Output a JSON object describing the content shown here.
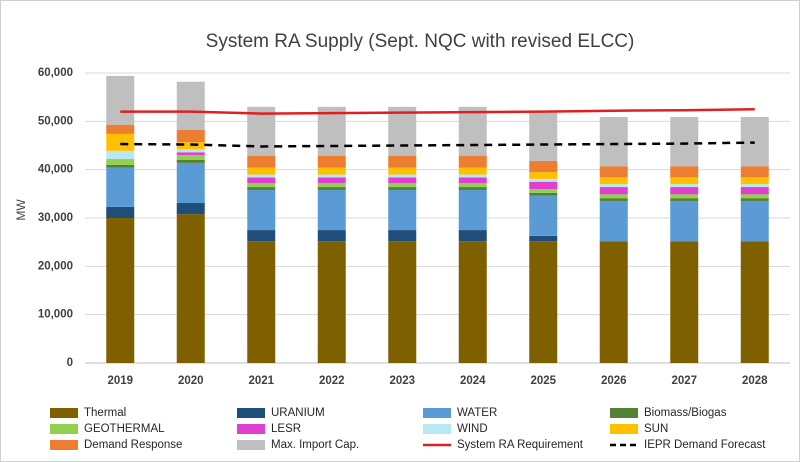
{
  "chart_data": {
    "type": "bar",
    "stacked": true,
    "title": "System RA Supply (Sept. NQC with revised ELCC)",
    "y_label": "MW",
    "categories": [
      "2019",
      "2020",
      "2021",
      "2022",
      "2023",
      "2024",
      "2025",
      "2026",
      "2027",
      "2028"
    ],
    "ylim": [
      0,
      60000
    ],
    "yticks": [
      0,
      {
        "value": 10000,
        "label": "10,000"
      },
      {
        "value": 20000,
        "label": "20,000"
      },
      {
        "value": 30000,
        "label": "30,000"
      },
      {
        "value": 40000,
        "label": "40,000"
      },
      {
        "value": 50000,
        "label": "50,000"
      },
      {
        "value": 60000,
        "label": "60,000"
      }
    ],
    "grid": true,
    "series": [
      {
        "name": "Thermal",
        "color": "#7f6000",
        "values": [
          30000,
          30800,
          25200,
          25200,
          25200,
          25200,
          25200,
          25200,
          25200,
          25200
        ]
      },
      {
        "name": "URANIUM",
        "color": "#1f4e79",
        "values": [
          2300,
          2300,
          2300,
          2300,
          2300,
          2300,
          1100,
          0,
          0,
          0
        ]
      },
      {
        "name": "WATER",
        "color": "#5b9bd5",
        "values": [
          8100,
          8300,
          8300,
          8300,
          8300,
          8300,
          8300,
          8300,
          8300,
          8300
        ]
      },
      {
        "name": "Biomass/Biogas",
        "color": "#548235",
        "values": [
          600,
          600,
          600,
          600,
          600,
          600,
          600,
          600,
          600,
          600
        ]
      },
      {
        "name": "GEOTHERMAL",
        "color": "#92d050",
        "values": [
          1200,
          1000,
          800,
          800,
          800,
          800,
          800,
          800,
          800,
          800
        ]
      },
      {
        "name": "LESR",
        "color": "#e040d0",
        "values": [
          0,
          600,
          1200,
          1200,
          1200,
          1200,
          1500,
          1500,
          1500,
          1500
        ]
      },
      {
        "name": "WIND",
        "color": "#b8e8f2",
        "values": [
          1700,
          600,
          600,
          600,
          600,
          600,
          600,
          600,
          600,
          600
        ]
      },
      {
        "name": "SUN",
        "color": "#ffc000",
        "values": [
          3500,
          1500,
          1400,
          1400,
          1400,
          1400,
          1400,
          1400,
          1400,
          1400
        ]
      },
      {
        "name": "Demand Response",
        "color": "#ed7d31",
        "values": [
          1900,
          2500,
          2500,
          2500,
          2500,
          2500,
          2300,
          2300,
          2300,
          2300
        ]
      },
      {
        "name": "Max. Import Cap.",
        "color": "#bfbfbf",
        "values": [
          10100,
          10000,
          10100,
          10100,
          10100,
          10100,
          10000,
          10200,
          10200,
          10200
        ]
      },
      {
        "name": "System RA Requirement",
        "color": "#e02020",
        "type": "line",
        "dashed": false,
        "values": [
          52000,
          52000,
          51600,
          51700,
          51800,
          51900,
          52000,
          52200,
          52300,
          52500
        ]
      },
      {
        "name": "IEPR Demand Forecast",
        "color": "#000000",
        "type": "line",
        "dashed": true,
        "values": [
          45300,
          45200,
          44800,
          44900,
          45000,
          45100,
          45200,
          45300,
          45400,
          45600
        ]
      }
    ]
  }
}
